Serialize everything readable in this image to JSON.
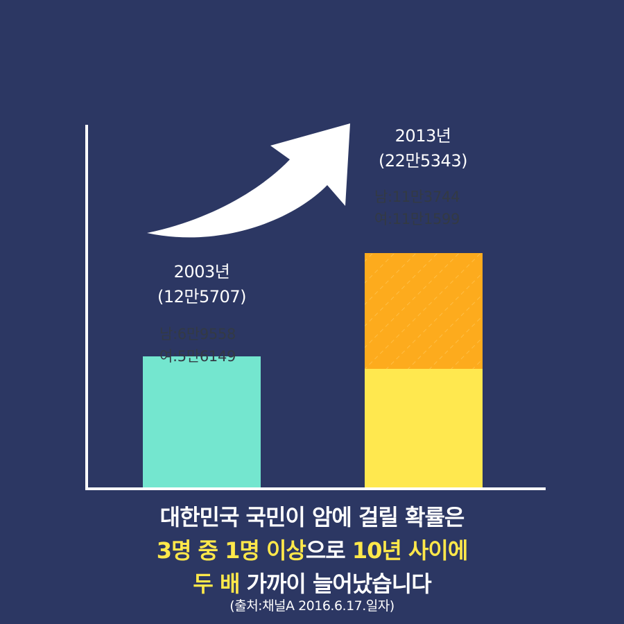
{
  "chart_data": {
    "type": "bar",
    "stacked": true,
    "categories": [
      "2003년",
      "2013년"
    ],
    "totals": [
      125707,
      225343
    ],
    "series": [
      {
        "values": [
          125707,
          113744
        ],
        "colors": [
          "#74e6cf",
          "#ffe84f"
        ]
      },
      {
        "values": [
          0,
          111599
        ],
        "colors": [
          "#74e6cf",
          "#fdab1d"
        ]
      }
    ],
    "ylim": [
      0,
      300000
    ],
    "grid": false,
    "legend": "none",
    "labels": [
      {
        "year": "2003년",
        "total": "(12만5707)",
        "male": "남:6만9558",
        "female": "여:5만6149"
      },
      {
        "year": "2013년",
        "total": "(22만5343)",
        "male": "남:11만3744",
        "female": "여:11만1599"
      }
    ]
  },
  "caption": {
    "line1": "대한민국 국민이 암에 걸릴 확률은",
    "line2_hl1": "3명 중 1명 이상",
    "line2_mid": "으로 ",
    "line2_hl2": "10년 사이에",
    "line3_hl": "두 배",
    "line3_rest": " 가까이 늘어났습니다"
  },
  "source": "(출처:채널A 2016.6.17.일자)",
  "colors": {
    "background": "#2c3763",
    "bar_2003": "#74e6cf",
    "bar_2013_bottom": "#ffe84f",
    "bar_2013_top": "#fdab1d",
    "highlight": "#ffe84a"
  }
}
